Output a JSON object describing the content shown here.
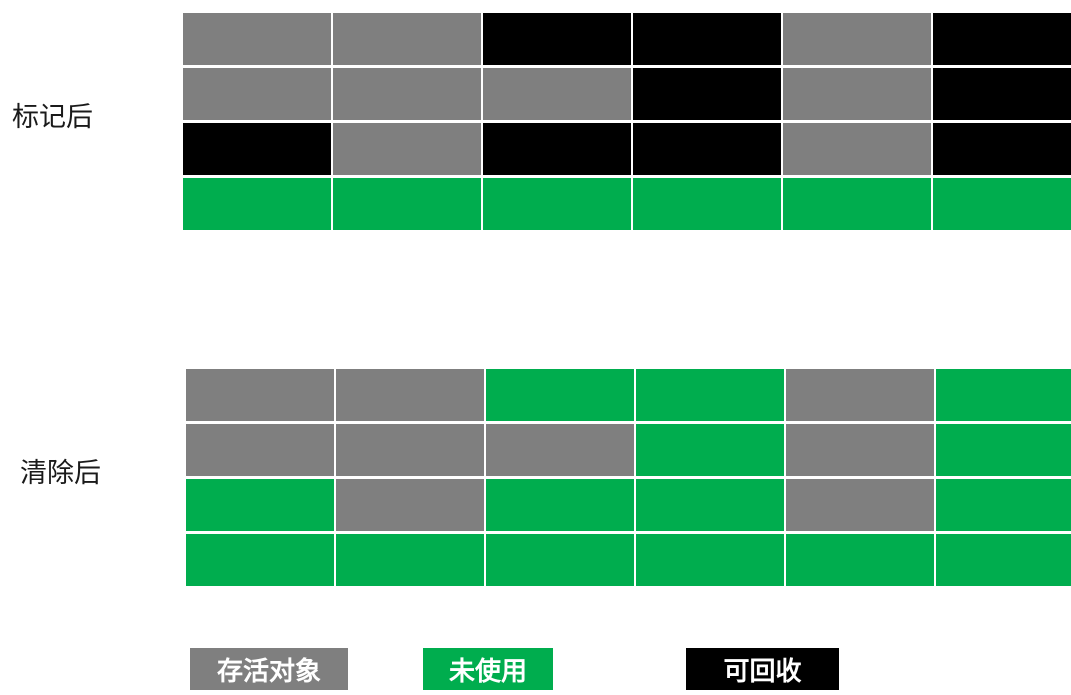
{
  "sections": [
    {
      "label": "标记后",
      "rows": [
        [
          "live",
          "live",
          "garbage",
          "garbage",
          "live",
          "garbage"
        ],
        [
          "live",
          "live",
          "live",
          "garbage",
          "live",
          "garbage"
        ],
        [
          "garbage",
          "live",
          "garbage",
          "garbage",
          "live",
          "garbage"
        ],
        [
          "free",
          "free",
          "free",
          "free",
          "free",
          "free"
        ]
      ]
    },
    {
      "label": "清除后",
      "rows": [
        [
          "live",
          "live",
          "free",
          "free",
          "live",
          "free"
        ],
        [
          "live",
          "live",
          "live",
          "free",
          "live",
          "free"
        ],
        [
          "free",
          "live",
          "free",
          "free",
          "live",
          "free"
        ],
        [
          "free",
          "free",
          "free",
          "free",
          "free",
          "free"
        ]
      ]
    }
  ],
  "legend": {
    "live": {
      "label": "存活对象",
      "color": "#7f7f7f"
    },
    "free": {
      "label": "未使用",
      "color": "#00ad4e"
    },
    "garbage": {
      "label": "可回收",
      "color": "#000000"
    }
  }
}
